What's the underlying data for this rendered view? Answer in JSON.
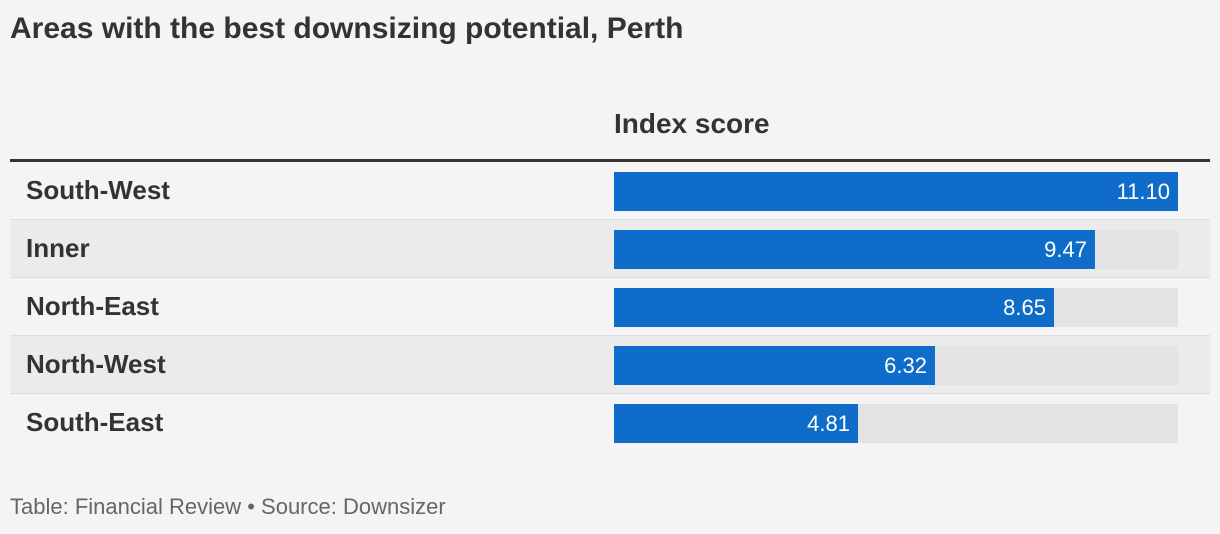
{
  "chart_data": {
    "type": "bar",
    "title": "Areas with the best downsizing potential, Perth",
    "value_header": "Index score",
    "categories": [
      "South-West",
      "Inner",
      "North-East",
      "North-West",
      "South-East"
    ],
    "values": [
      11.1,
      9.47,
      8.65,
      6.32,
      4.81
    ],
    "value_labels": [
      "11.10",
      "9.47",
      "8.65",
      "6.32",
      "4.81"
    ],
    "xlim": [
      0,
      11.1
    ],
    "orientation": "horizontal",
    "bar_color": "#0f6dc9",
    "track_color": "#e3e3e3"
  },
  "footer": "Table: Financial Review • Source: Downsizer"
}
